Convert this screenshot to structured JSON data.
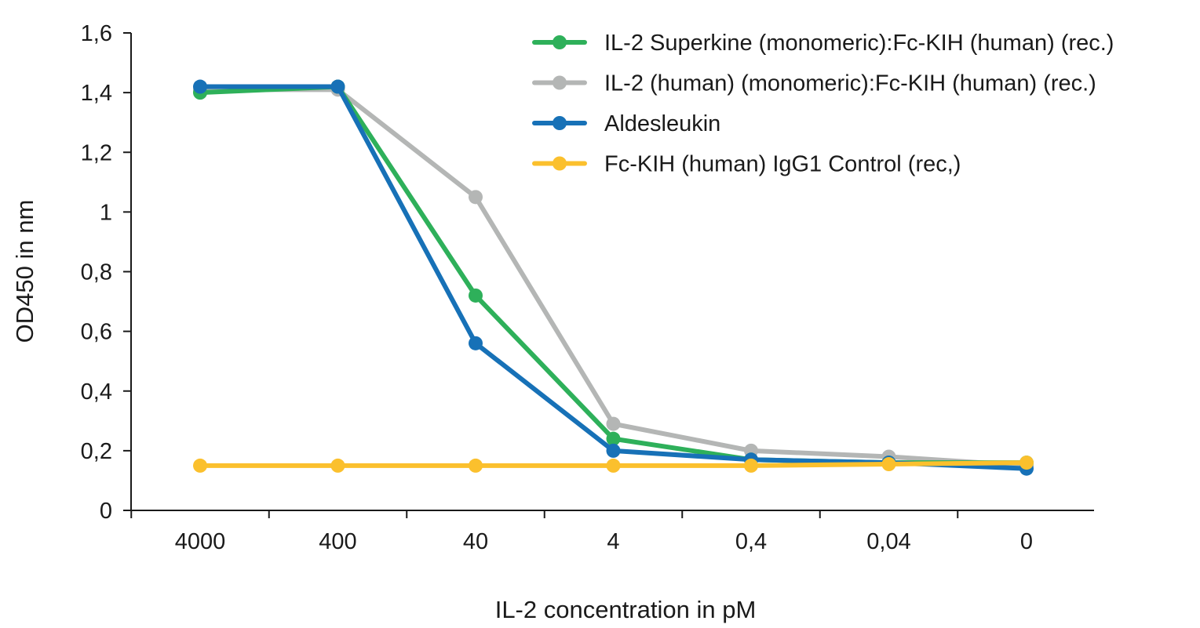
{
  "chart_data": {
    "type": "line",
    "xlabel": "IL-2 concentration in pM",
    "ylabel": "OD450 in nm",
    "categories": [
      "4000",
      "400",
      "40",
      "4",
      "0,4",
      "0,04",
      "0"
    ],
    "ylim": [
      0,
      1.6
    ],
    "yticks": [
      {
        "value": 0,
        "label": "0"
      },
      {
        "value": 0.2,
        "label": "0,2"
      },
      {
        "value": 0.4,
        "label": "0,4"
      },
      {
        "value": 0.6,
        "label": "0,6"
      },
      {
        "value": 0.8,
        "label": "0,8"
      },
      {
        "value": 1.0,
        "label": "1"
      },
      {
        "value": 1.2,
        "label": "1,2"
      },
      {
        "value": 1.4,
        "label": "1,4"
      },
      {
        "value": 1.6,
        "label": "1,6"
      }
    ],
    "grid": false,
    "legend_position": "top-right",
    "series": [
      {
        "name": "IL-2 Superkine (monomeric):Fc-KIH (human) (rec.)",
        "color": "#2eb05a",
        "values": [
          1.4,
          1.42,
          0.72,
          0.24,
          0.17,
          0.16,
          0.16
        ]
      },
      {
        "name": "IL-2 (human) (monomeric):Fc-KIH (human) (rec.)",
        "color": "#b4b6b5",
        "values": [
          1.41,
          1.41,
          1.05,
          0.29,
          0.2,
          0.18,
          0.15
        ]
      },
      {
        "name": "Aldesleukin",
        "color": "#1771b7",
        "values": [
          1.42,
          1.42,
          0.56,
          0.2,
          0.17,
          0.16,
          0.14
        ]
      },
      {
        "name": "Fc-KIH (human) IgG1 Control (rec,)",
        "color": "#fbc02d",
        "values": [
          0.15,
          0.15,
          0.15,
          0.15,
          0.15,
          0.155,
          0.16
        ]
      }
    ]
  }
}
